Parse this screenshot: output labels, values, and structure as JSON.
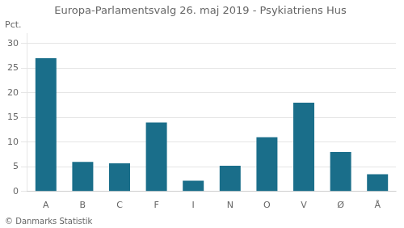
{
  "chart_data": {
    "type": "bar",
    "title": "Europa-Parlamentsvalg 26. maj 2019 - Psykiatriens Hus",
    "ylabel": "Pct.",
    "footer": "© Danmarks Statistik",
    "categories": [
      "A",
      "B",
      "C",
      "F",
      "I",
      "N",
      "O",
      "V",
      "Ø",
      "Å"
    ],
    "values": [
      27.0,
      6.0,
      5.7,
      14.0,
      2.2,
      5.2,
      11.0,
      18.0,
      8.0,
      3.5
    ],
    "color": "#1a6e8a",
    "ylim": [
      0,
      32
    ],
    "yticks": [
      0,
      5,
      10,
      15,
      20,
      25,
      30
    ],
    "grid": true
  }
}
